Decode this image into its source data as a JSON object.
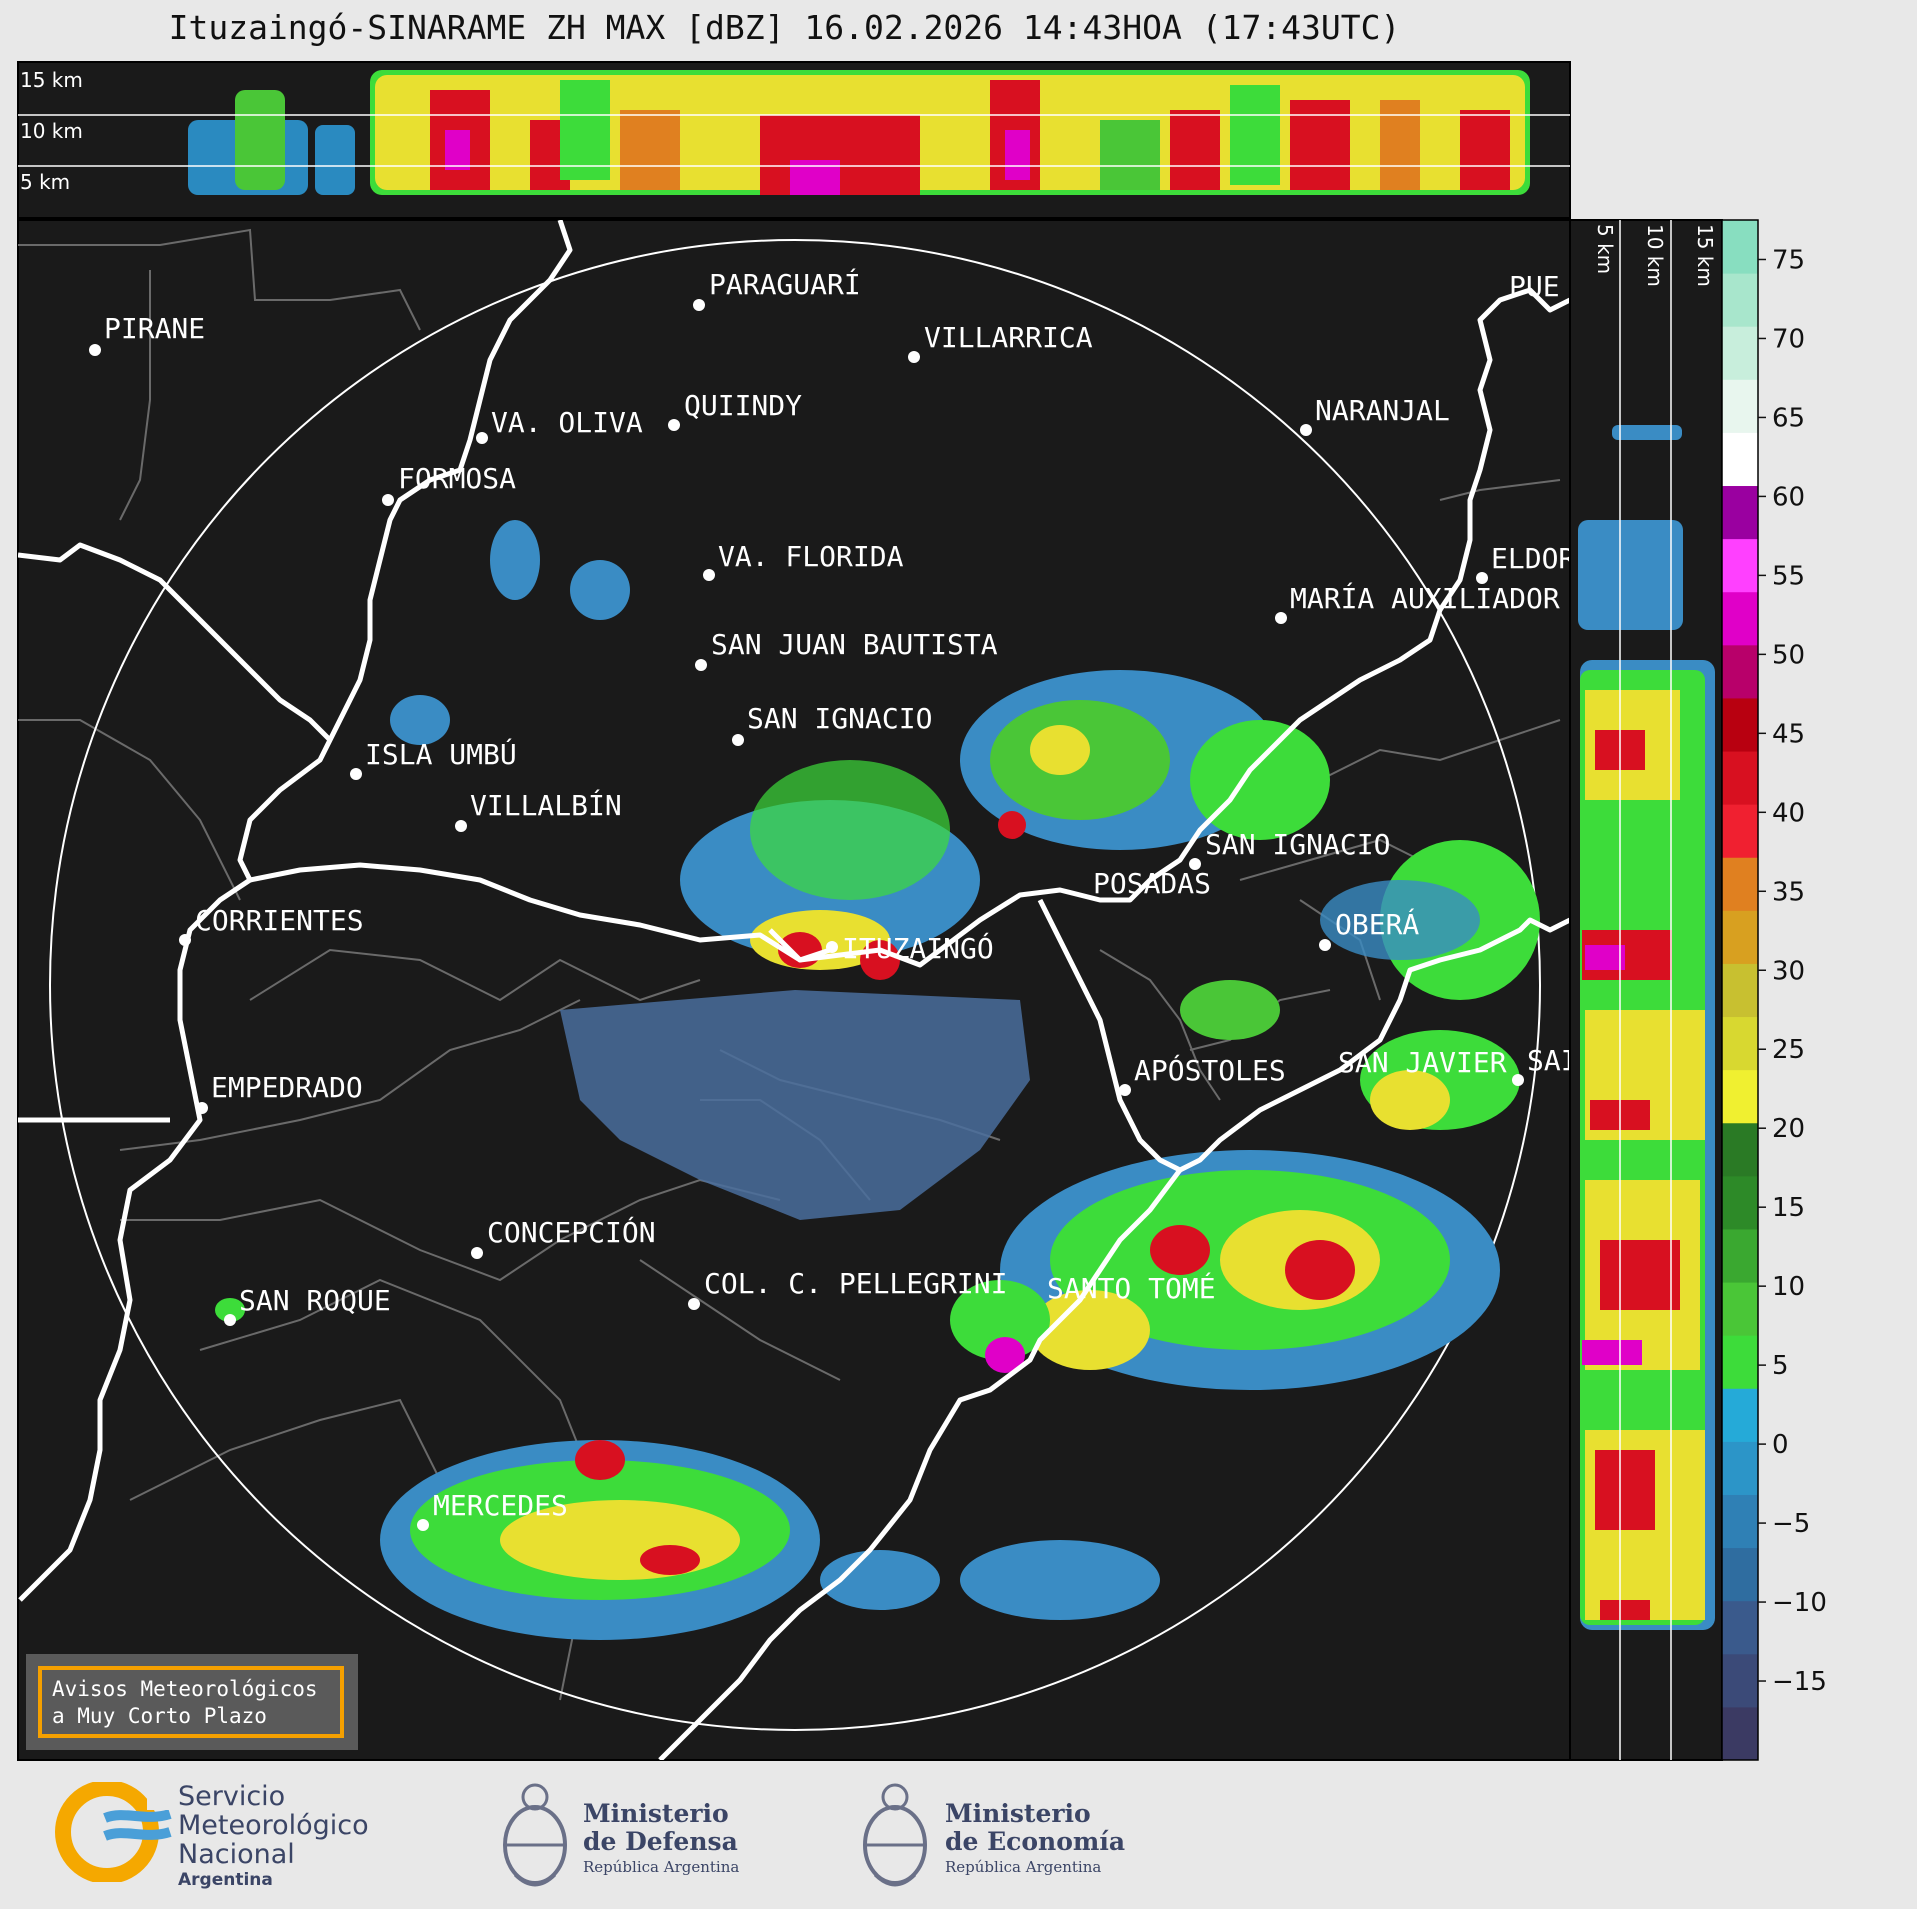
{
  "title": "Ituzaingó-SINARAME ZH MAX [dBZ] 16.02.2026 14:43HOA (17:43UTC)",
  "top_panel": {
    "labels": [
      "15 km",
      "10 km",
      "5 km"
    ]
  },
  "side_panel": {
    "labels": [
      "5 km",
      "10 km",
      "15 km"
    ]
  },
  "colorbar": {
    "ticks": [
      "75",
      "70",
      "65",
      "60",
      "55",
      "50",
      "45",
      "40",
      "35",
      "30",
      "25",
      "20",
      "15",
      "10",
      "5",
      "0",
      "−5",
      "−10",
      "−15"
    ],
    "colors": [
      "#3b3a63",
      "#3b4a78",
      "#3a5a8c",
      "#2f6da0",
      "#2f80b5",
      "#2c95c8",
      "#25aad8",
      "#3ddc3a",
      "#4ac637",
      "#3aa830",
      "#2d8a28",
      "#2a7a25",
      "#f0f030",
      "#d8d830",
      "#c8c030",
      "#d8a020",
      "#e08020",
      "#f02030",
      "#d81020",
      "#b80010",
      "#b8006a",
      "#e000c8",
      "#ff40ff",
      "#9a00a0",
      "#ffffff",
      "#e8f6ee",
      "#c8eedc",
      "#a8e6cc",
      "#88dec0"
    ]
  },
  "cities": [
    {
      "name": "PIRANE"
    },
    {
      "name": "PARAGUARÍ"
    },
    {
      "name": "VILLARRICA"
    },
    {
      "name": "QUIINDY"
    },
    {
      "name": "VA. OLIVA"
    },
    {
      "name": "NARANJAL"
    },
    {
      "name": "FORMOSA"
    },
    {
      "name": "VA. FLORIDA"
    },
    {
      "name": "ELDOR"
    },
    {
      "name": "MARÍA AUXILIADOR"
    },
    {
      "name": "SAN JUAN BAUTISTA"
    },
    {
      "name": "SAN IGNACIO"
    },
    {
      "name": "ISLA UMBÚ"
    },
    {
      "name": "VILLALBÍN"
    },
    {
      "name": "SAN IGNACIO"
    },
    {
      "name": "POSADAS"
    },
    {
      "name": "CORRIENTES"
    },
    {
      "name": "ITUZAINGÓ"
    },
    {
      "name": "OBERÁ"
    },
    {
      "name": "APÓSTOLES"
    },
    {
      "name": "SAN JAVIER"
    },
    {
      "name": "SAI"
    },
    {
      "name": "EMPEDRADO"
    },
    {
      "name": "CONCEPCIÓN"
    },
    {
      "name": "COL. C. PELLEGRINI"
    },
    {
      "name": "SANTO TOMÉ"
    },
    {
      "name": "SAN ROQUE"
    },
    {
      "name": "MERCEDES"
    },
    {
      "name": "PUE"
    }
  ],
  "warning": {
    "text": "Avisos Meteorológicos\na Muy Corto Plazo"
  },
  "footer": {
    "smn": {
      "line1": "Servicio",
      "line2": "Meteorológico",
      "line3": "Nacional",
      "line4": "Argentina"
    },
    "defensa": {
      "line1": "Ministerio",
      "line2": "de Defensa",
      "line3": "República Argentina"
    },
    "economia": {
      "line1": "Ministerio",
      "line2": "de Economía",
      "line3": "República Argentina"
    }
  }
}
